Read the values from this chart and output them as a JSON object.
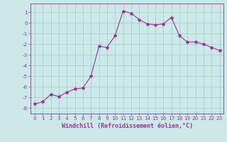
{
  "xlabel": "Windchill (Refroidissement éolien,°C)",
  "x": [
    0,
    1,
    2,
    3,
    4,
    5,
    6,
    7,
    8,
    9,
    10,
    11,
    12,
    13,
    14,
    15,
    16,
    17,
    18,
    19,
    20,
    21,
    22,
    23
  ],
  "y": [
    -7.6,
    -7.4,
    -6.7,
    -6.9,
    -6.5,
    -6.2,
    -6.1,
    -5.0,
    -2.2,
    -2.3,
    -1.2,
    1.1,
    0.9,
    0.3,
    -0.1,
    -0.2,
    -0.1,
    0.5,
    -1.2,
    -1.8,
    -1.8,
    -2.0,
    -2.3,
    -2.6
  ],
  "line_color": "#993399",
  "marker": "*",
  "background_color": "#cce8e8",
  "grid_color": "#aacccc",
  "ylim": [
    -8.5,
    1.8
  ],
  "xlim": [
    -0.5,
    23.5
  ],
  "yticks": [
    -8,
    -7,
    -6,
    -5,
    -4,
    -3,
    -2,
    -1,
    0,
    1
  ],
  "xticks": [
    0,
    1,
    2,
    3,
    4,
    5,
    6,
    7,
    8,
    9,
    10,
    11,
    12,
    13,
    14,
    15,
    16,
    17,
    18,
    19,
    20,
    21,
    22,
    23
  ],
  "tick_color": "#993399",
  "label_color": "#993399",
  "tick_fontsize": 5.2,
  "xlabel_fontsize": 6.0
}
